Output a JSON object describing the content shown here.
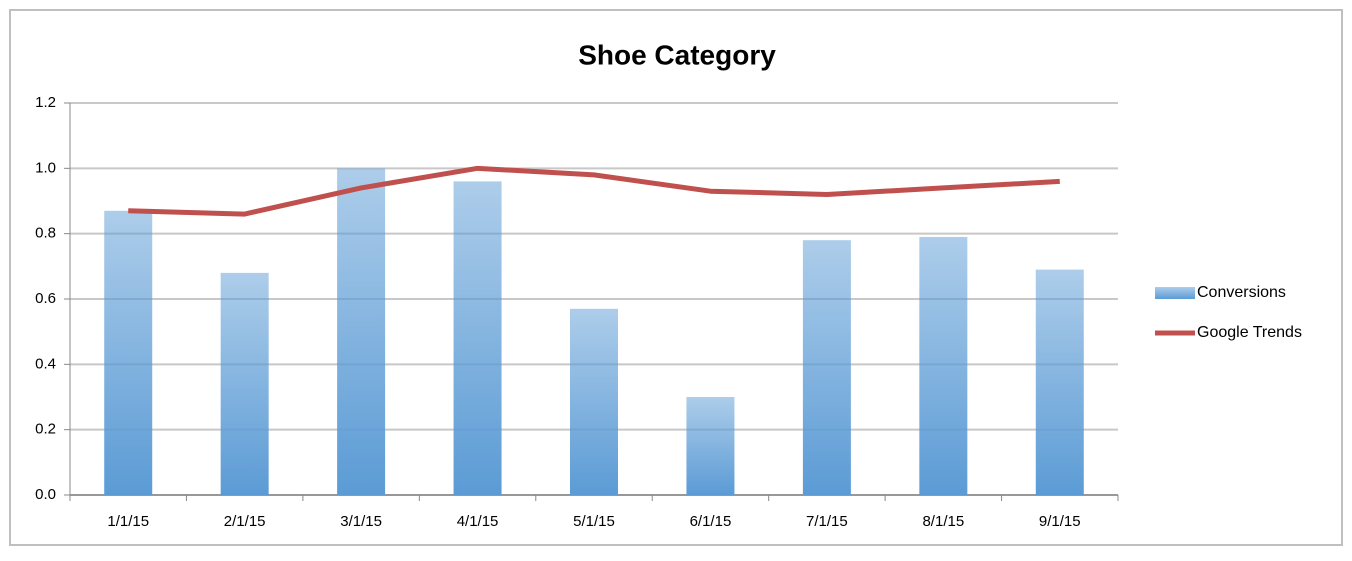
{
  "chart_data": {
    "type": "bar-line",
    "title": "Shoe Category",
    "categories": [
      "1/1/15",
      "2/1/15",
      "3/1/15",
      "4/1/15",
      "5/1/15",
      "6/1/15",
      "7/1/15",
      "8/1/15",
      "9/1/15"
    ],
    "series": [
      {
        "name": "Conversions",
        "type": "bar",
        "color": "#5b9bd5",
        "values": [
          0.87,
          0.68,
          1.0,
          0.96,
          0.57,
          0.3,
          0.78,
          0.79,
          0.69
        ]
      },
      {
        "name": "Google Trends",
        "type": "line",
        "color": "#c0504d",
        "values": [
          0.87,
          0.86,
          0.94,
          1.0,
          0.98,
          0.93,
          0.92,
          0.94,
          0.96
        ]
      }
    ],
    "ylim": [
      0,
      1.2
    ],
    "yticks": [
      {
        "value": 0,
        "label": "0.0"
      },
      0.2,
      0.4,
      0.6,
      0.8,
      {
        "value": 1,
        "label": "1.0"
      },
      1.2
    ],
    "grid": true,
    "legend": "right"
  }
}
